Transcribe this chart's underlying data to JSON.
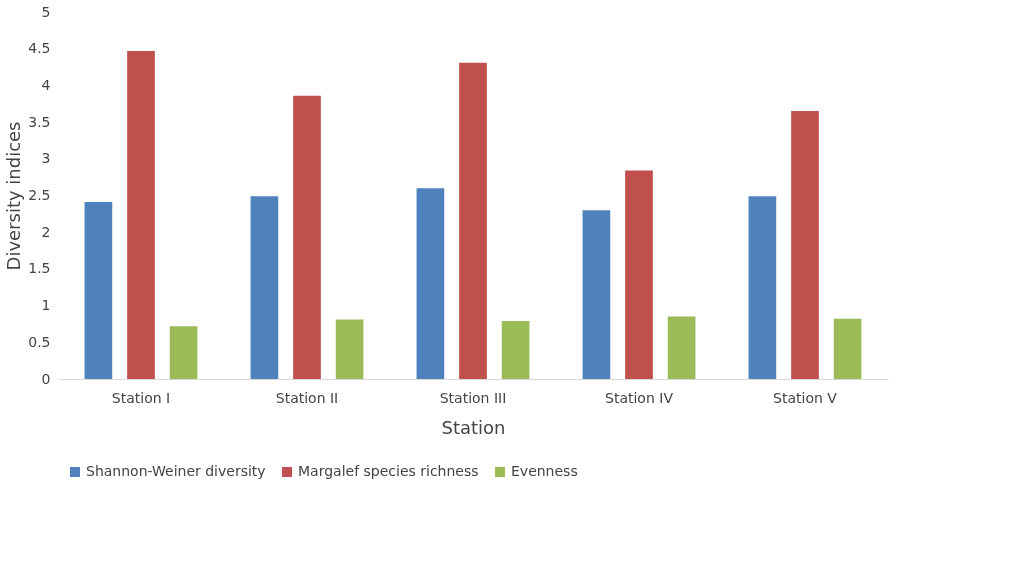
{
  "chart_data": {
    "type": "bar",
    "xlabel": "Station",
    "ylabel": "Diversity indices",
    "categories": [
      "Station I",
      "Station II",
      "Station III",
      "Station IV",
      "Station V"
    ],
    "series": [
      {
        "name": "Shannon-Weiner diversity",
        "color": "#4f81bd",
        "values": [
          2.41,
          2.49,
          2.6,
          2.3,
          2.49
        ]
      },
      {
        "name": "Margalef species richness",
        "color": "#c0504d",
        "values": [
          4.47,
          3.86,
          4.31,
          2.84,
          3.65
        ]
      },
      {
        "name": "Evenness",
        "color": "#9bbb59",
        "values": [
          0.72,
          0.81,
          0.79,
          0.85,
          0.82
        ]
      }
    ],
    "ylim": [
      0,
      5
    ],
    "yticks": [
      0,
      0.5,
      1,
      1.5,
      2,
      2.5,
      3,
      3.5,
      4,
      4.5,
      5
    ],
    "grid": false,
    "legend": "bottom"
  }
}
